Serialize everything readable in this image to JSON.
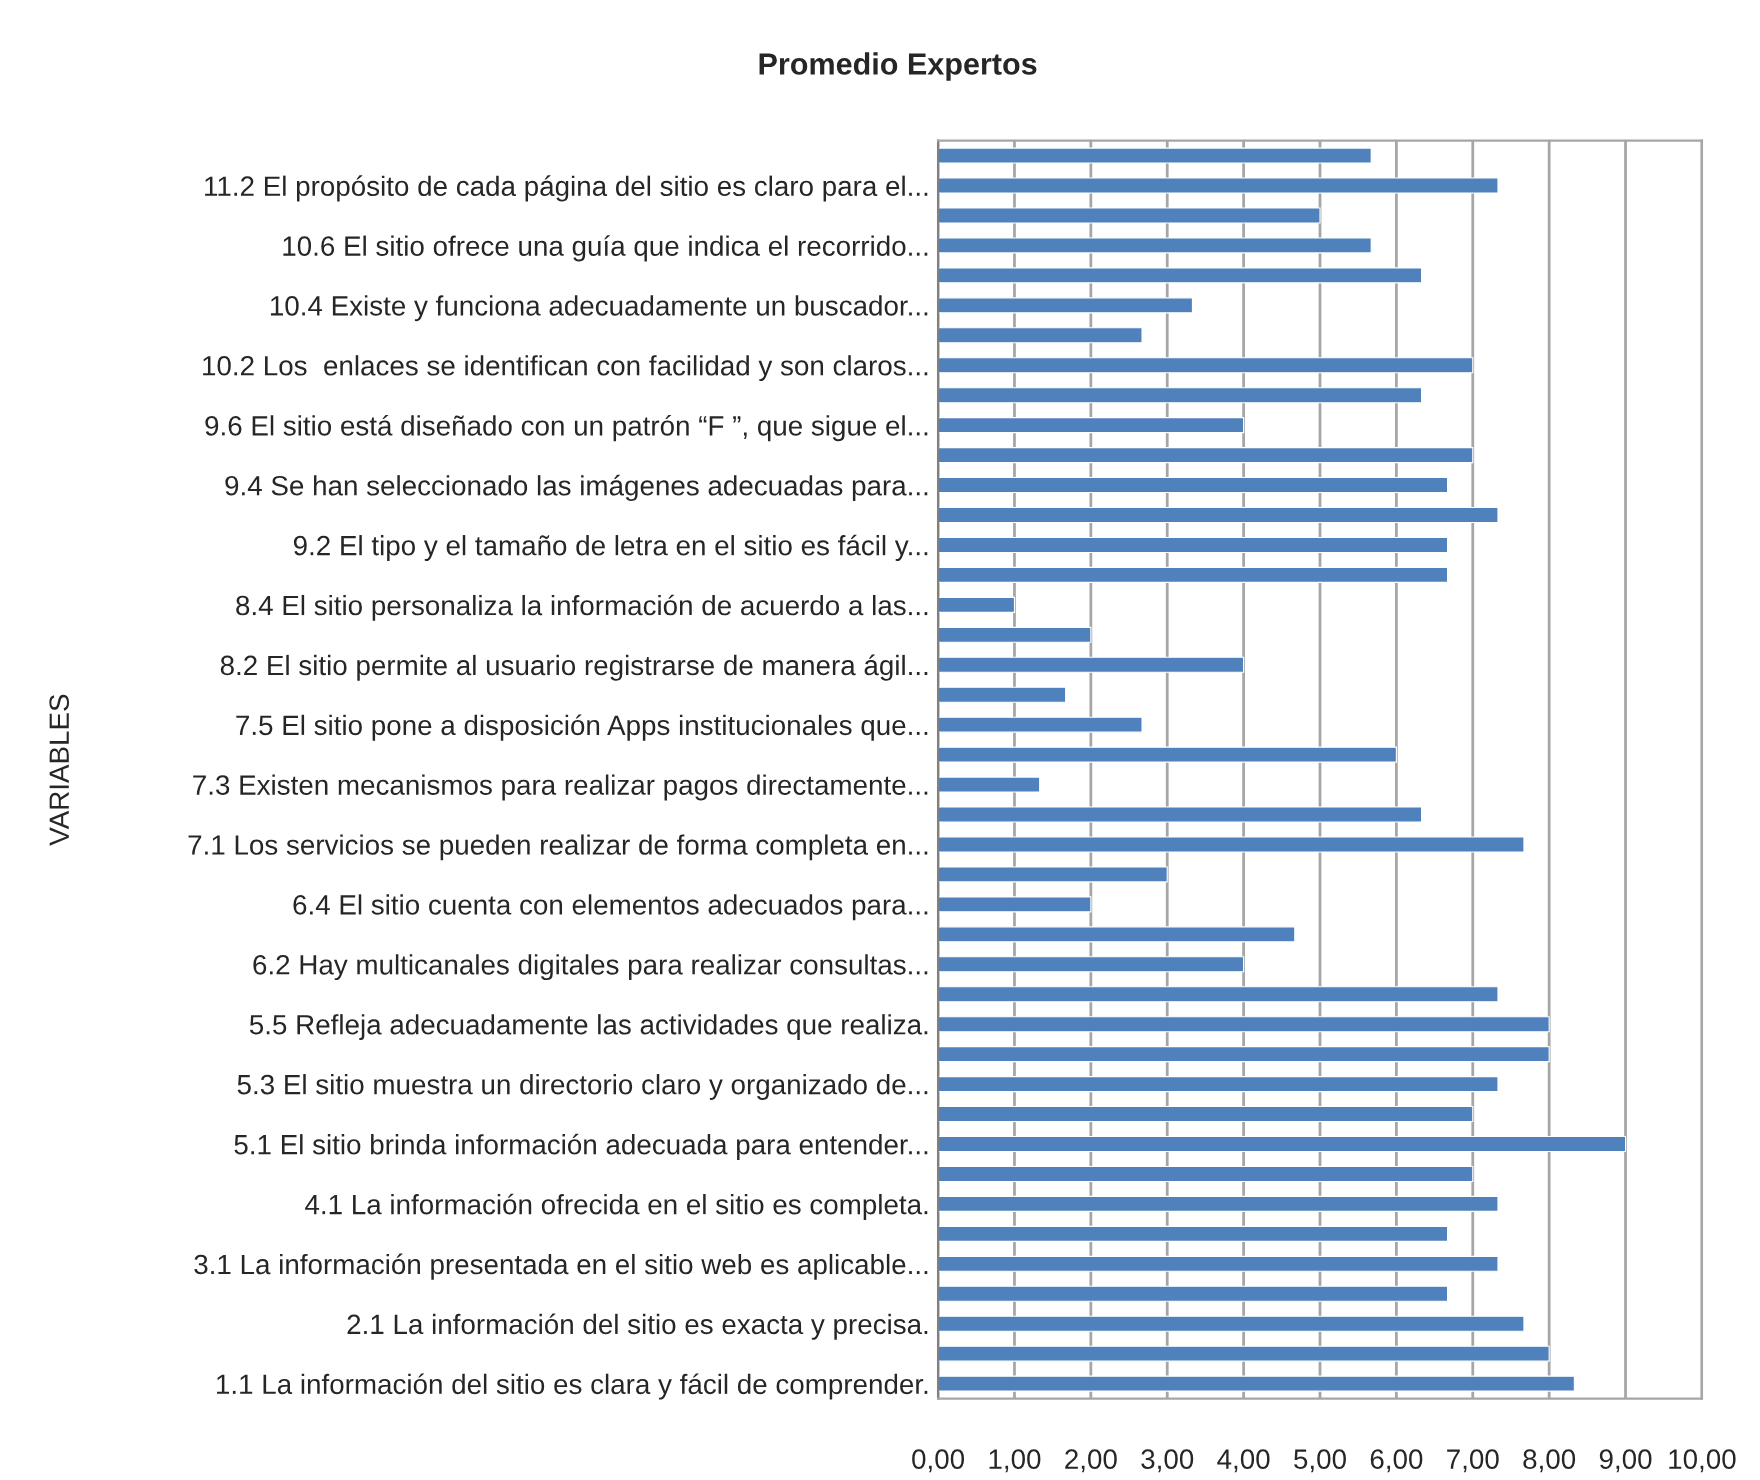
{
  "chart_data": {
    "type": "bar",
    "orientation": "horizontal",
    "title": "Promedio Expertos",
    "ylabel": "VARIABLES",
    "categories": [
      null,
      "11.2 El propósito de cada página del sitio es claro para el...",
      null,
      "10.6 El sitio ofrece una guía que indica el recorrido...",
      null,
      "10.4 Existe y funciona adecuadamente un buscador...",
      null,
      "10.2 Los  enlaces se identifican con facilidad y son claros...",
      null,
      "9.6 El sitio está diseñado con un patrón “F ”, que sigue el...",
      null,
      "9.4 Se han seleccionado las imágenes adecuadas para...",
      null,
      "9.2 El tipo y el tamaño de letra en el sitio es fácil y...",
      null,
      "8.4 El sitio personaliza la información de acuerdo a las...",
      null,
      "8.2 El sitio permite al usuario registrarse de manera ágil...",
      null,
      "7.5 El sitio pone a disposición Apps institucionales que...",
      null,
      "7.3 Existen mecanismos para realizar pagos directamente...",
      null,
      "7.1 Los servicios se pueden realizar de forma completa en...",
      null,
      "6.4 El sitio cuenta con elementos adecuados para...",
      null,
      "6.2 Hay multicanales digitales para realizar consultas...",
      null,
      "5.5 Refleja adecuadamente las actividades que realiza.",
      null,
      "5.3 El sitio muestra un directorio claro y organizado de...",
      null,
      "5.1 El sitio brinda información adecuada para entender...",
      null,
      "4.1 La información ofrecida en el sitio es completa.",
      null,
      "3.1 La información presentada en el sitio web es aplicable...",
      null,
      "2.1 La información del sitio es exacta y precisa.",
      null,
      "1.1 La información del sitio es clara y fácil de comprender."
    ],
    "values": [
      5.67,
      7.33,
      5.0,
      5.67,
      6.33,
      3.33,
      2.67,
      7.0,
      6.33,
      4.0,
      7.0,
      6.67,
      7.33,
      6.67,
      6.67,
      1.0,
      2.0,
      4.0,
      1.67,
      2.67,
      6.0,
      1.33,
      6.33,
      7.67,
      3.0,
      2.0,
      4.67,
      4.0,
      7.33,
      8.0,
      8.0,
      7.33,
      7.0,
      9.0,
      7.0,
      7.33,
      6.67,
      7.33,
      6.67,
      7.67,
      8.0,
      8.33
    ],
    "color": "#4f81bd",
    "xlim": [
      0,
      10
    ],
    "xticks": [
      {
        "value": 0,
        "label": "0,00"
      },
      {
        "value": 1,
        "label": "1,00"
      },
      {
        "value": 2,
        "label": "2,00"
      },
      {
        "value": 3,
        "label": "3,00"
      },
      {
        "value": 4,
        "label": "4,00"
      },
      {
        "value": 5,
        "label": "5,00"
      },
      {
        "value": 6,
        "label": "6,00"
      },
      {
        "value": 7,
        "label": "7,00"
      },
      {
        "value": 8,
        "label": "8,00"
      },
      {
        "value": 9,
        "label": "9,00"
      },
      {
        "value": 10,
        "label": "10,00"
      }
    ],
    "grid": "x"
  }
}
